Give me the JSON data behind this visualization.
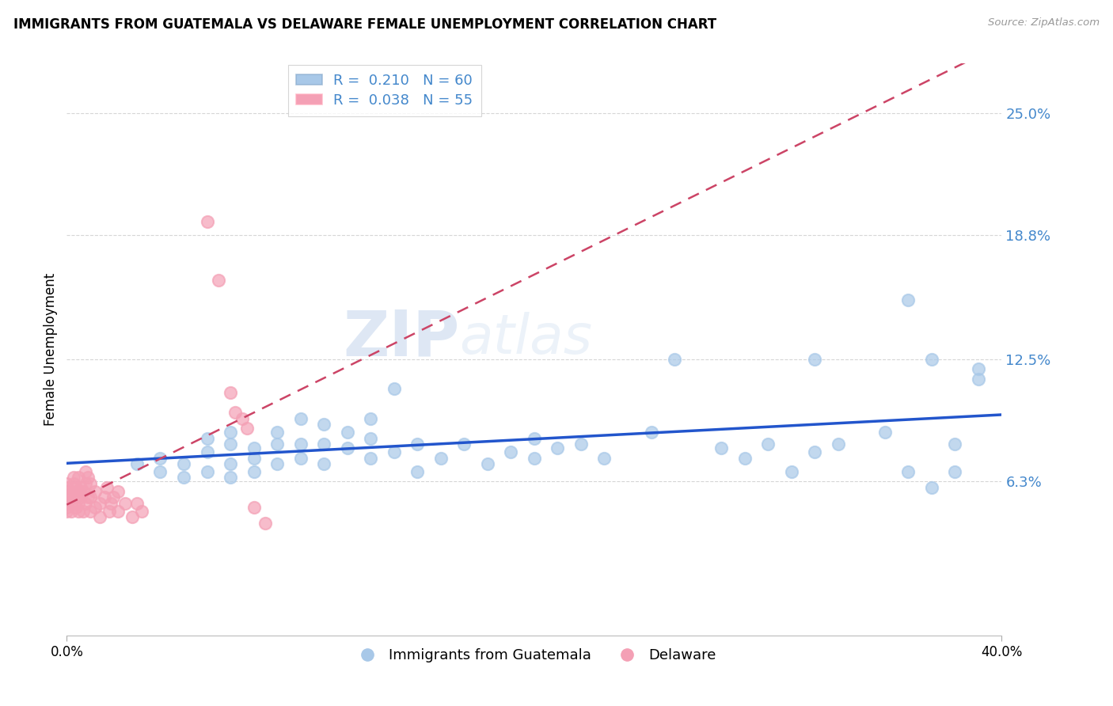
{
  "title": "IMMIGRANTS FROM GUATEMALA VS DELAWARE FEMALE UNEMPLOYMENT CORRELATION CHART",
  "source_text": "Source: ZipAtlas.com",
  "ylabel": "Female Unemployment",
  "xlim": [
    0.0,
    0.4
  ],
  "ylim": [
    -0.015,
    0.275
  ],
  "ytick_labels": [
    "6.3%",
    "12.5%",
    "18.8%",
    "25.0%"
  ],
  "ytick_values": [
    0.063,
    0.125,
    0.188,
    0.25
  ],
  "xtick_labels": [
    "0.0%",
    "40.0%"
  ],
  "xtick_values": [
    0.0,
    0.4
  ],
  "legend_r_blue": "R =  0.210",
  "legend_n_blue": "N = 60",
  "legend_r_pink": "R =  0.038",
  "legend_n_pink": "N = 55",
  "blue_color": "#a8c8e8",
  "pink_color": "#f4a0b5",
  "line_blue": "#2255cc",
  "line_pink": "#cc4466",
  "watermark_zip": "ZIP",
  "watermark_atlas": "atlas",
  "background_color": "#ffffff",
  "grid_color": "#cccccc",
  "axis_label_color": "#4488cc",
  "blue_scatter": [
    [
      0.03,
      0.072
    ],
    [
      0.04,
      0.068
    ],
    [
      0.04,
      0.075
    ],
    [
      0.05,
      0.065
    ],
    [
      0.05,
      0.072
    ],
    [
      0.06,
      0.068
    ],
    [
      0.06,
      0.078
    ],
    [
      0.06,
      0.085
    ],
    [
      0.07,
      0.065
    ],
    [
      0.07,
      0.072
    ],
    [
      0.07,
      0.082
    ],
    [
      0.07,
      0.088
    ],
    [
      0.08,
      0.068
    ],
    [
      0.08,
      0.075
    ],
    [
      0.08,
      0.08
    ],
    [
      0.09,
      0.072
    ],
    [
      0.09,
      0.082
    ],
    [
      0.09,
      0.088
    ],
    [
      0.1,
      0.075
    ],
    [
      0.1,
      0.082
    ],
    [
      0.1,
      0.095
    ],
    [
      0.11,
      0.072
    ],
    [
      0.11,
      0.082
    ],
    [
      0.11,
      0.092
    ],
    [
      0.12,
      0.08
    ],
    [
      0.12,
      0.088
    ],
    [
      0.13,
      0.075
    ],
    [
      0.13,
      0.085
    ],
    [
      0.13,
      0.095
    ],
    [
      0.14,
      0.078
    ],
    [
      0.14,
      0.11
    ],
    [
      0.15,
      0.068
    ],
    [
      0.15,
      0.082
    ],
    [
      0.16,
      0.075
    ],
    [
      0.17,
      0.082
    ],
    [
      0.18,
      0.072
    ],
    [
      0.19,
      0.078
    ],
    [
      0.2,
      0.075
    ],
    [
      0.2,
      0.085
    ],
    [
      0.21,
      0.08
    ],
    [
      0.22,
      0.082
    ],
    [
      0.23,
      0.075
    ],
    [
      0.25,
      0.088
    ],
    [
      0.26,
      0.125
    ],
    [
      0.28,
      0.08
    ],
    [
      0.29,
      0.075
    ],
    [
      0.3,
      0.082
    ],
    [
      0.31,
      0.068
    ],
    [
      0.32,
      0.078
    ],
    [
      0.32,
      0.125
    ],
    [
      0.33,
      0.082
    ],
    [
      0.35,
      0.088
    ],
    [
      0.36,
      0.155
    ],
    [
      0.36,
      0.068
    ],
    [
      0.37,
      0.06
    ],
    [
      0.37,
      0.125
    ],
    [
      0.38,
      0.082
    ],
    [
      0.38,
      0.068
    ],
    [
      0.39,
      0.115
    ],
    [
      0.39,
      0.12
    ]
  ],
  "pink_scatter": [
    [
      0.0,
      0.048
    ],
    [
      0.0,
      0.05
    ],
    [
      0.0,
      0.052
    ],
    [
      0.0,
      0.055
    ],
    [
      0.0,
      0.058
    ],
    [
      0.0,
      0.06
    ],
    [
      0.0,
      0.062
    ],
    [
      0.002,
      0.048
    ],
    [
      0.002,
      0.052
    ],
    [
      0.002,
      0.055
    ],
    [
      0.003,
      0.058
    ],
    [
      0.003,
      0.062
    ],
    [
      0.003,
      0.065
    ],
    [
      0.004,
      0.05
    ],
    [
      0.004,
      0.055
    ],
    [
      0.004,
      0.06
    ],
    [
      0.005,
      0.048
    ],
    [
      0.005,
      0.052
    ],
    [
      0.005,
      0.058
    ],
    [
      0.005,
      0.065
    ],
    [
      0.006,
      0.055
    ],
    [
      0.006,
      0.06
    ],
    [
      0.007,
      0.048
    ],
    [
      0.007,
      0.058
    ],
    [
      0.008,
      0.052
    ],
    [
      0.008,
      0.062
    ],
    [
      0.008,
      0.068
    ],
    [
      0.009,
      0.055
    ],
    [
      0.009,
      0.065
    ],
    [
      0.01,
      0.048
    ],
    [
      0.01,
      0.055
    ],
    [
      0.01,
      0.062
    ],
    [
      0.012,
      0.05
    ],
    [
      0.012,
      0.058
    ],
    [
      0.014,
      0.045
    ],
    [
      0.014,
      0.052
    ],
    [
      0.016,
      0.055
    ],
    [
      0.017,
      0.06
    ],
    [
      0.018,
      0.048
    ],
    [
      0.019,
      0.052
    ],
    [
      0.02,
      0.055
    ],
    [
      0.022,
      0.048
    ],
    [
      0.022,
      0.058
    ],
    [
      0.025,
      0.052
    ],
    [
      0.028,
      0.045
    ],
    [
      0.03,
      0.052
    ],
    [
      0.032,
      0.048
    ],
    [
      0.06,
      0.195
    ],
    [
      0.065,
      0.165
    ],
    [
      0.07,
      0.108
    ],
    [
      0.072,
      0.098
    ],
    [
      0.075,
      0.095
    ],
    [
      0.077,
      0.09
    ],
    [
      0.08,
      0.05
    ],
    [
      0.085,
      0.042
    ]
  ]
}
